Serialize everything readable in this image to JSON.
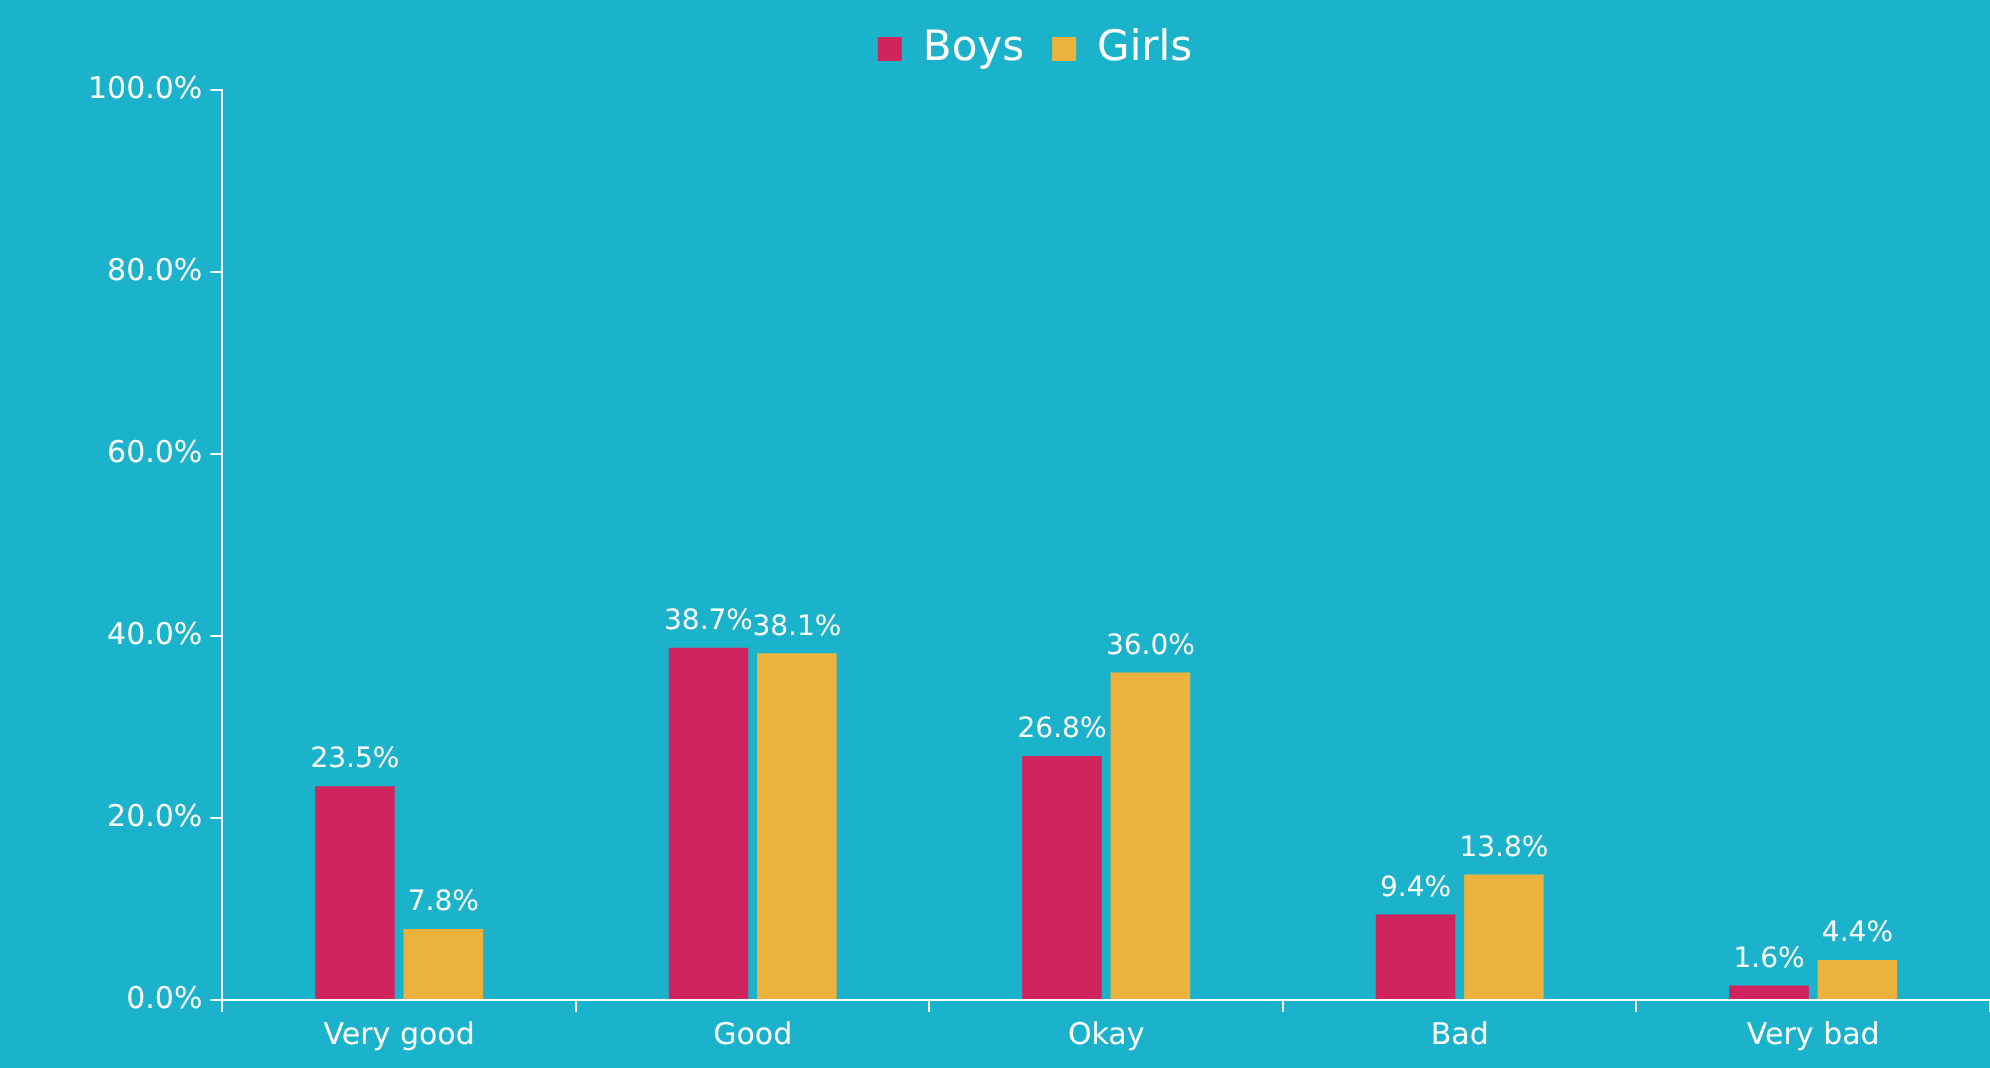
{
  "chart_data": {
    "type": "bar",
    "categories": [
      "Very good",
      "Good",
      "Okay",
      "Bad",
      "Very bad"
    ],
    "series": [
      {
        "name": "Boys",
        "color": "#d0245c",
        "values": [
          23.5,
          38.7,
          26.8,
          9.4,
          1.6
        ],
        "value_labels": [
          "23.5%",
          "38.7%",
          "26.8%",
          "9.4%",
          "1.6%"
        ]
      },
      {
        "name": "Girls",
        "color": "#ebb23e",
        "values": [
          7.8,
          38.1,
          36.0,
          13.8,
          4.4
        ],
        "value_labels": [
          "7.8%",
          "38.1%",
          "36.0%",
          "13.8%",
          "4.4%"
        ]
      }
    ],
    "ylim": [
      0,
      100
    ],
    "yticks": [
      {
        "value": 0,
        "label": "0.0%"
      },
      {
        "value": 20,
        "label": "20.0%"
      },
      {
        "value": 40,
        "label": "40.0%"
      },
      {
        "value": 60,
        "label": "60.0%"
      },
      {
        "value": 80,
        "label": "80.0%"
      },
      {
        "value": 100,
        "label": "100.0%"
      }
    ],
    "grid": false,
    "legend": "top"
  }
}
